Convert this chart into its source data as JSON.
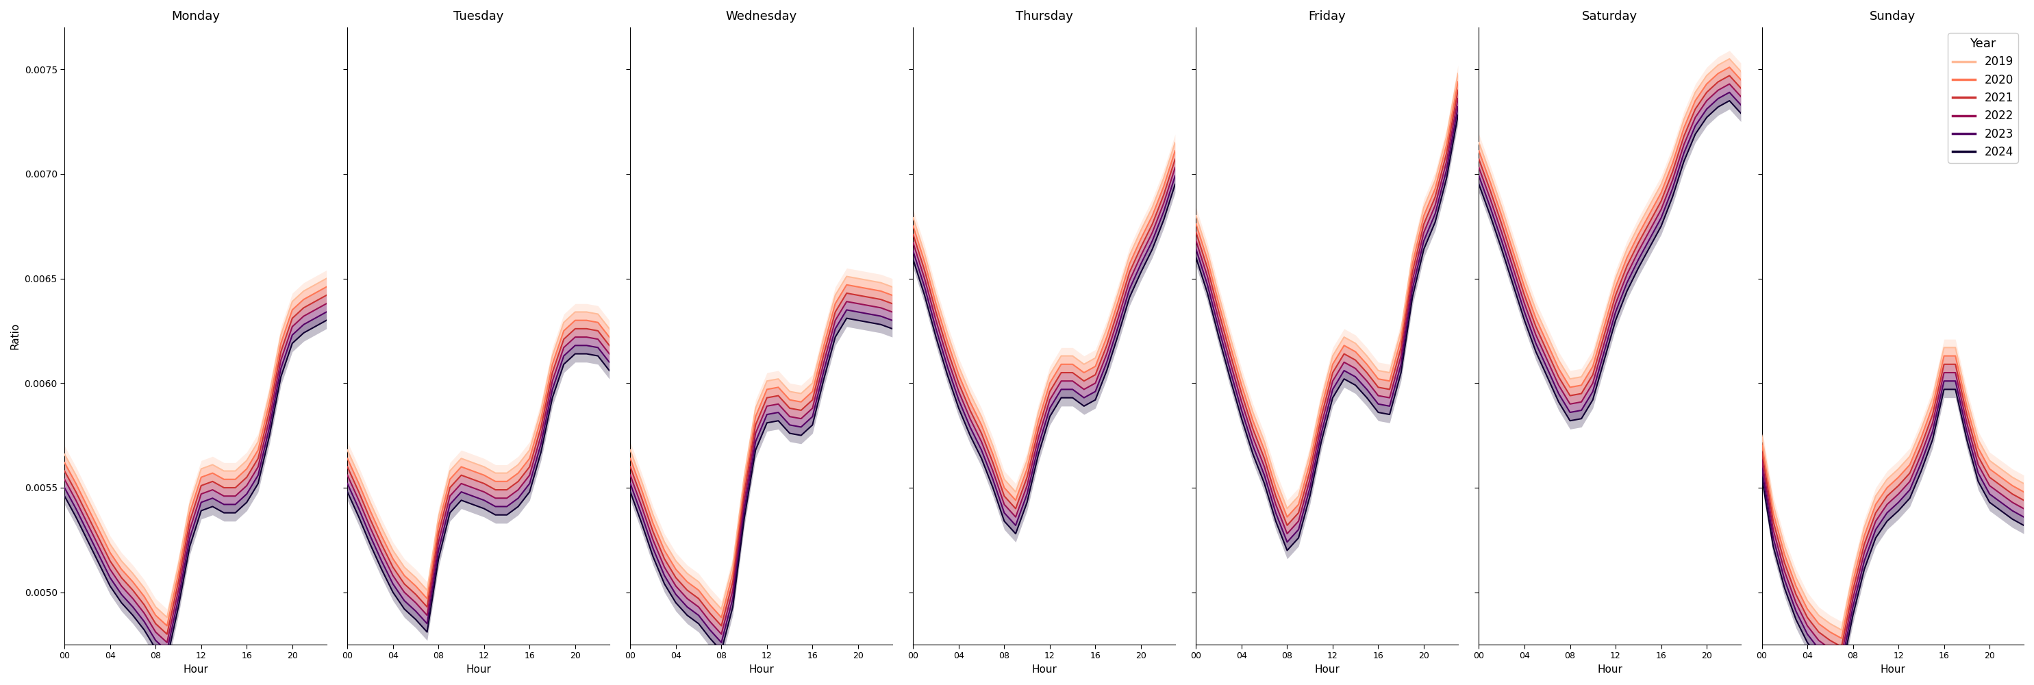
{
  "days": [
    "Monday",
    "Tuesday",
    "Wednesday",
    "Thursday",
    "Friday",
    "Saturday",
    "Sunday"
  ],
  "years": [
    2019,
    2020,
    2021,
    2022,
    2023,
    2024
  ],
  "year_colors": [
    "#FFBB99",
    "#FF7755",
    "#CC3333",
    "#991155",
    "#550066",
    "#110033"
  ],
  "xlabel": "Hour",
  "ylabel": "Ratio",
  "legend_title": "Year",
  "hour_ticks": [
    0,
    4,
    8,
    12,
    16,
    20
  ],
  "hour_tick_labels": [
    "00",
    "04",
    "08",
    "12",
    "16",
    "20"
  ],
  "ylim": [
    0.00475,
    0.0077
  ],
  "yticks": [
    0.005,
    0.0055,
    0.006,
    0.0065,
    0.007,
    0.0075
  ],
  "base_profiles": {
    "Monday": [
      0.00554,
      0.00544,
      0.00533,
      0.00522,
      0.00511,
      0.00503,
      0.00497,
      0.0049,
      0.00481,
      0.00476,
      0.00501,
      0.0053,
      0.00547,
      0.00549,
      0.00546,
      0.00546,
      0.00551,
      0.0056,
      0.00583,
      0.00611,
      0.00627,
      0.00632,
      0.00635,
      0.00638
    ],
    "Tuesday": [
      0.00556,
      0.00544,
      0.00531,
      0.00519,
      0.00508,
      0.005,
      0.00495,
      0.00489,
      0.00524,
      0.00546,
      0.00552,
      0.0055,
      0.00548,
      0.00545,
      0.00545,
      0.00549,
      0.00556,
      0.00575,
      0.00601,
      0.00617,
      0.00622,
      0.00622,
      0.00621,
      0.00614
    ],
    "Wednesday": [
      0.00556,
      0.00541,
      0.00525,
      0.00512,
      0.00503,
      0.00497,
      0.00493,
      0.00486,
      0.0048,
      0.00501,
      0.00543,
      0.00576,
      0.00589,
      0.0059,
      0.00584,
      0.00583,
      0.00588,
      0.0061,
      0.0063,
      0.00639,
      0.00638,
      0.00637,
      0.00636,
      0.00634
    ],
    "Thursday": [
      0.00667,
      0.0065,
      0.0063,
      0.00612,
      0.00596,
      0.00583,
      0.00572,
      0.00558,
      0.00542,
      0.00536,
      0.00551,
      0.00574,
      0.00592,
      0.00601,
      0.00601,
      0.00597,
      0.006,
      0.00614,
      0.00631,
      0.00649,
      0.00661,
      0.00672,
      0.00686,
      0.00703
    ],
    "Friday": [
      0.00668,
      0.00651,
      0.0063,
      0.0061,
      0.00591,
      0.00574,
      0.0056,
      0.00542,
      0.00528,
      0.00534,
      0.00554,
      0.0058,
      0.00601,
      0.0061,
      0.00607,
      0.00601,
      0.00594,
      0.00593,
      0.00613,
      0.00649,
      0.00672,
      0.00685,
      0.00706,
      0.00736
    ],
    "Saturday": [
      0.00703,
      0.00688,
      0.00672,
      0.00655,
      0.00638,
      0.00623,
      0.00611,
      0.00599,
      0.0059,
      0.00591,
      0.006,
      0.00619,
      0.00638,
      0.00652,
      0.00663,
      0.00673,
      0.00683,
      0.00697,
      0.00714,
      0.00727,
      0.00735,
      0.0074,
      0.00743,
      0.00737
    ],
    "Sunday": [
      0.00563,
      0.0053,
      0.0051,
      0.00495,
      0.00484,
      0.00477,
      0.00473,
      0.0047,
      0.00497,
      0.00519,
      0.00534,
      0.00542,
      0.00547,
      0.00553,
      0.00566,
      0.00581,
      0.00605,
      0.00605,
      0.00581,
      0.00561,
      0.00551,
      0.00547,
      0.00543,
      0.0054
    ]
  },
  "year_offsets": [
    0.00012,
    8e-05,
    4e-05,
    0.0,
    -4e-05,
    -8e-05
  ],
  "band_halfwidth": 4e-05,
  "band_alpha": 0.25,
  "linewidth": 1.5
}
